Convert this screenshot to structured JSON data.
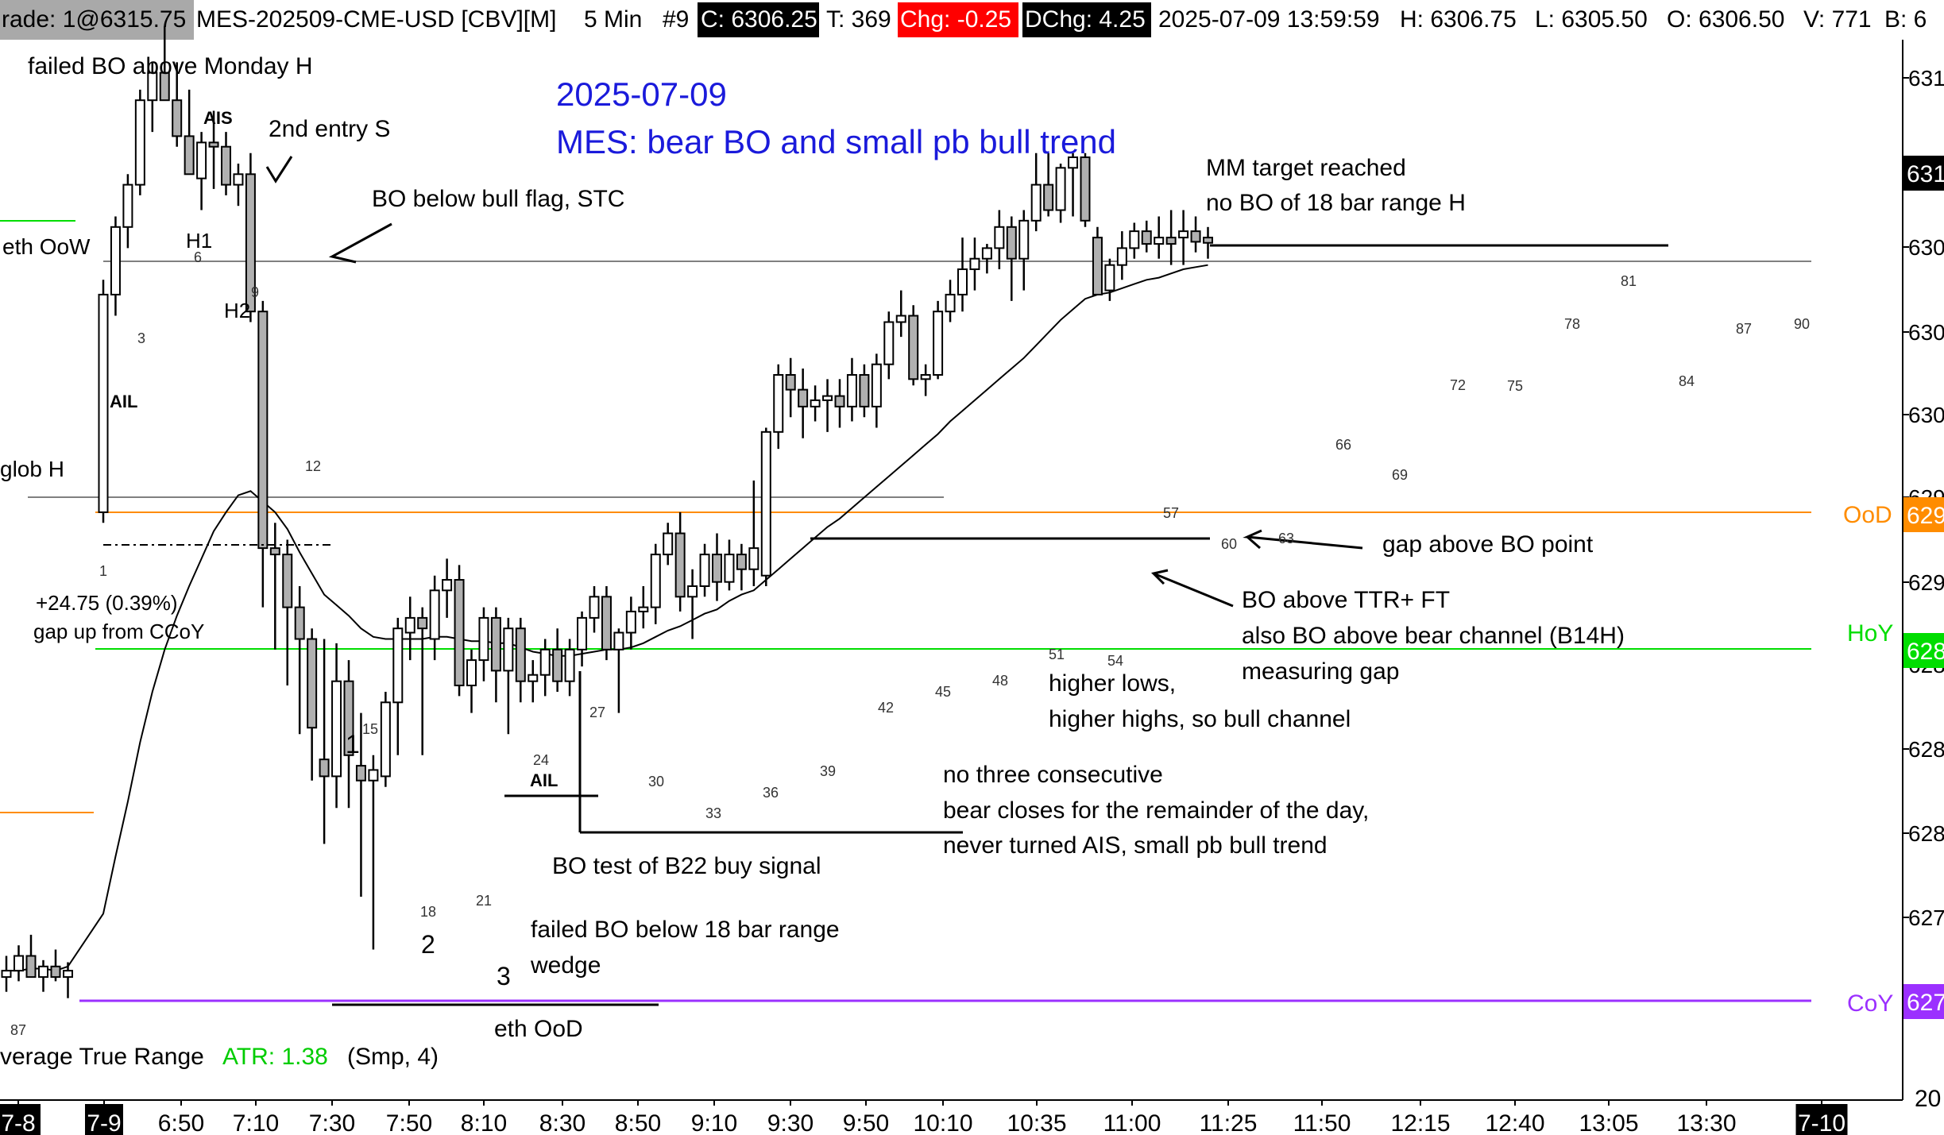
{
  "header": {
    "trade": "rade: 1@6315.75",
    "symbol": "MES-202509-CME-USD [CBV][M]",
    "interval": "5 Min",
    "bar_no": "#9",
    "close": "C: 6306.25",
    "ticks": "T: 369",
    "chg": "Chg: -0.25",
    "dchg": "DChg: 4.25",
    "datetime": "2025-07-09 13:59:59",
    "high": "H: 6306.75",
    "low": "L: 6305.50",
    "open": "O: 6306.50",
    "volume": "V: 771",
    "b_label": "B: 6"
  },
  "title": {
    "date": "2025-07-09",
    "subtitle": "MES: bear BO and small pb bull trend"
  },
  "colors": {
    "title": "#1a1adb",
    "ood": "#ff8c00",
    "hoy": "#00dd00",
    "coy": "#9b30ff",
    "chg_bg": "#ff0000",
    "axis_tag_bg": "#000000",
    "bear_fill": "#b0b0b0",
    "bull_fill": "#ffffff"
  },
  "chart_data": {
    "type": "candlestick",
    "title": "2025-07-09",
    "subtitle": "MES: bear BO and small pb bull trend",
    "ylim": [
      6267.0,
      6318.0
    ],
    "y_ticks": [
      "631",
      "631",
      "630",
      "630",
      "630",
      "629",
      "629",
      "628",
      "628",
      "628",
      "627",
      "627"
    ],
    "y_axis_tags": [
      "631",
      "629",
      "628",
      "627",
      "20"
    ],
    "x_tick_labels": [
      "7-8",
      "7-9",
      "6:50",
      "7:10",
      "7:30",
      "7:50",
      "8:10",
      "8:30",
      "8:50",
      "9:10",
      "9:30",
      "9:50",
      "10:10",
      "10:35",
      "11:00",
      "11:25",
      "11:50",
      "12:15",
      "12:40",
      "13:05",
      "13:30",
      "7-10"
    ],
    "bars": [
      {
        "o": 6271.5,
        "h": 6272.5,
        "l": 6270.8,
        "c": 6271.8
      },
      {
        "o": 6271.8,
        "h": 6273.0,
        "l": 6271.3,
        "c": 6272.5
      },
      {
        "o": 6272.5,
        "h": 6273.5,
        "l": 6271.8,
        "c": 6271.5
      },
      {
        "o": 6271.5,
        "h": 6272.3,
        "l": 6270.8,
        "c": 6272.0
      },
      {
        "o": 6272.0,
        "h": 6272.8,
        "l": 6271.3,
        "c": 6271.5
      },
      {
        "o": 6271.5,
        "h": 6272.2,
        "l": 6270.5,
        "c": 6271.8
      },
      {
        "o": 6293.5,
        "h": 6304.5,
        "l": 6293.0,
        "c": 6303.8
      },
      {
        "o": 6303.8,
        "h": 6307.5,
        "l": 6302.8,
        "c": 6307.0
      },
      {
        "o": 6307.0,
        "h": 6309.5,
        "l": 6306.0,
        "c": 6309.0
      },
      {
        "o": 6309.0,
        "h": 6313.5,
        "l": 6308.5,
        "c": 6313.0
      },
      {
        "o": 6313.0,
        "h": 6314.8,
        "l": 6311.5,
        "c": 6314.3
      },
      {
        "o": 6314.3,
        "h": 6316.5,
        "l": 6313.0,
        "c": 6313.0
      },
      {
        "o": 6313.0,
        "h": 6314.8,
        "l": 6310.8,
        "c": 6311.3
      },
      {
        "o": 6311.3,
        "h": 6313.5,
        "l": 6309.5,
        "c": 6309.5
      },
      {
        "o": 6309.3,
        "h": 6311.5,
        "l": 6307.8,
        "c": 6311.0
      },
      {
        "o": 6311.0,
        "h": 6312.5,
        "l": 6308.8,
        "c": 6310.8
      },
      {
        "o": 6310.8,
        "h": 6311.5,
        "l": 6308.5,
        "c": 6309.0
      },
      {
        "o": 6309.0,
        "h": 6310.0,
        "l": 6308.0,
        "c": 6309.5
      },
      {
        "o": 6309.5,
        "h": 6310.5,
        "l": 6302.5,
        "c": 6303.0
      },
      {
        "o": 6303.0,
        "h": 6303.5,
        "l": 6289.0,
        "c": 6291.8
      },
      {
        "o": 6291.8,
        "h": 6293.0,
        "l": 6287.0,
        "c": 6291.5
      },
      {
        "o": 6291.5,
        "h": 6292.2,
        "l": 6285.3,
        "c": 6289.0
      },
      {
        "o": 6289.0,
        "h": 6290.0,
        "l": 6283.0,
        "c": 6287.5
      },
      {
        "o": 6287.5,
        "h": 6288.0,
        "l": 6280.8,
        "c": 6283.3
      },
      {
        "o": 6281.8,
        "h": 6287.5,
        "l": 6277.8,
        "c": 6281.0
      },
      {
        "o": 6281.0,
        "h": 6287.3,
        "l": 6279.5,
        "c": 6285.5
      },
      {
        "o": 6285.5,
        "h": 6286.5,
        "l": 6279.5,
        "c": 6282.0
      },
      {
        "o": 6281.5,
        "h": 6284.0,
        "l": 6275.3,
        "c": 6280.8
      },
      {
        "o": 6280.8,
        "h": 6282.0,
        "l": 6272.8,
        "c": 6281.3
      },
      {
        "o": 6281.0,
        "h": 6285.0,
        "l": 6280.5,
        "c": 6284.5
      },
      {
        "o": 6284.5,
        "h": 6288.5,
        "l": 6282.0,
        "c": 6288.0
      },
      {
        "o": 6287.8,
        "h": 6289.5,
        "l": 6286.5,
        "c": 6288.5
      },
      {
        "o": 6288.5,
        "h": 6289.0,
        "l": 6282.0,
        "c": 6288.0
      },
      {
        "o": 6287.5,
        "h": 6290.5,
        "l": 6286.5,
        "c": 6289.8
      },
      {
        "o": 6289.8,
        "h": 6291.3,
        "l": 6288.5,
        "c": 6290.3
      },
      {
        "o": 6290.3,
        "h": 6291.0,
        "l": 6284.8,
        "c": 6285.3
      },
      {
        "o": 6285.3,
        "h": 6287.0,
        "l": 6284.0,
        "c": 6286.5
      },
      {
        "o": 6286.5,
        "h": 6289.0,
        "l": 6285.5,
        "c": 6288.5
      },
      {
        "o": 6288.5,
        "h": 6289.0,
        "l": 6284.5,
        "c": 6286.0
      },
      {
        "o": 6286.0,
        "h": 6288.5,
        "l": 6283.0,
        "c": 6288.0
      },
      {
        "o": 6288.0,
        "h": 6288.5,
        "l": 6284.5,
        "c": 6285.5
      },
      {
        "o": 6285.5,
        "h": 6286.5,
        "l": 6284.5,
        "c": 6285.8
      },
      {
        "o": 6285.8,
        "h": 6287.5,
        "l": 6284.8,
        "c": 6287.0
      },
      {
        "o": 6287.0,
        "h": 6288.0,
        "l": 6285.0,
        "c": 6285.5
      },
      {
        "o": 6285.5,
        "h": 6287.5,
        "l": 6284.8,
        "c": 6287.0
      },
      {
        "o": 6287.0,
        "h": 6288.8,
        "l": 6286.2,
        "c": 6288.5
      },
      {
        "o": 6288.5,
        "h": 6290.0,
        "l": 6287.8,
        "c": 6289.5
      },
      {
        "o": 6289.5,
        "h": 6290.0,
        "l": 6286.5,
        "c": 6287.0
      },
      {
        "o": 6287.0,
        "h": 6288.0,
        "l": 6284.0,
        "c": 6287.8
      },
      {
        "o": 6287.8,
        "h": 6289.5,
        "l": 6287.0,
        "c": 6288.8
      },
      {
        "o": 6288.8,
        "h": 6290.0,
        "l": 6288.0,
        "c": 6289.0
      },
      {
        "o": 6289.0,
        "h": 6292.0,
        "l": 6288.2,
        "c": 6291.5
      },
      {
        "o": 6291.5,
        "h": 6293.0,
        "l": 6291.0,
        "c": 6292.5
      },
      {
        "o": 6292.5,
        "h": 6293.5,
        "l": 6288.8,
        "c": 6289.5
      },
      {
        "o": 6289.5,
        "h": 6290.8,
        "l": 6287.5,
        "c": 6290.0
      },
      {
        "o": 6290.0,
        "h": 6292.0,
        "l": 6289.5,
        "c": 6291.5
      },
      {
        "o": 6291.5,
        "h": 6292.5,
        "l": 6289.3,
        "c": 6290.2
      },
      {
        "o": 6290.2,
        "h": 6292.2,
        "l": 6289.8,
        "c": 6291.5
      },
      {
        "o": 6291.5,
        "h": 6292.0,
        "l": 6289.8,
        "c": 6290.8
      },
      {
        "o": 6290.8,
        "h": 6295.0,
        "l": 6290.0,
        "c": 6291.8
      },
      {
        "o": 6290.5,
        "h": 6297.5,
        "l": 6290.0,
        "c": 6297.3
      },
      {
        "o": 6297.3,
        "h": 6300.5,
        "l": 6296.5,
        "c": 6300.0
      },
      {
        "o": 6300.0,
        "h": 6300.8,
        "l": 6298.0,
        "c": 6299.3
      },
      {
        "o": 6299.3,
        "h": 6300.3,
        "l": 6297.0,
        "c": 6298.5
      },
      {
        "o": 6298.5,
        "h": 6299.5,
        "l": 6297.8,
        "c": 6298.8
      },
      {
        "o": 6298.8,
        "h": 6299.8,
        "l": 6297.3,
        "c": 6299.0
      },
      {
        "o": 6299.0,
        "h": 6299.8,
        "l": 6297.5,
        "c": 6298.5
      },
      {
        "o": 6298.5,
        "h": 6300.8,
        "l": 6297.8,
        "c": 6300.0
      },
      {
        "o": 6300.0,
        "h": 6300.5,
        "l": 6298.0,
        "c": 6298.5
      },
      {
        "o": 6298.5,
        "h": 6301.0,
        "l": 6297.5,
        "c": 6300.5
      },
      {
        "o": 6300.5,
        "h": 6303.0,
        "l": 6299.8,
        "c": 6302.5
      },
      {
        "o": 6302.5,
        "h": 6304.0,
        "l": 6301.8,
        "c": 6302.8
      },
      {
        "o": 6302.8,
        "h": 6303.3,
        "l": 6299.5,
        "c": 6299.8
      },
      {
        "o": 6299.8,
        "h": 6300.5,
        "l": 6299.0,
        "c": 6300.0
      },
      {
        "o": 6300.0,
        "h": 6303.5,
        "l": 6299.8,
        "c": 6303.0
      },
      {
        "o": 6303.0,
        "h": 6304.5,
        "l": 6302.5,
        "c": 6303.8
      },
      {
        "o": 6303.8,
        "h": 6306.5,
        "l": 6303.0,
        "c": 6305.0
      },
      {
        "o": 6305.0,
        "h": 6306.5,
        "l": 6304.0,
        "c": 6305.5
      },
      {
        "o": 6305.5,
        "h": 6306.2,
        "l": 6304.8,
        "c": 6306.0
      },
      {
        "o": 6306.0,
        "h": 6307.8,
        "l": 6305.0,
        "c": 6307.0
      },
      {
        "o": 6307.0,
        "h": 6307.5,
        "l": 6303.5,
        "c": 6305.5
      },
      {
        "o": 6305.5,
        "h": 6307.8,
        "l": 6304.0,
        "c": 6307.3
      },
      {
        "o": 6307.3,
        "h": 6310.5,
        "l": 6306.8,
        "c": 6309.0
      },
      {
        "o": 6309.0,
        "h": 6310.5,
        "l": 6307.5,
        "c": 6307.8
      },
      {
        "o": 6307.8,
        "h": 6310.0,
        "l": 6307.2,
        "c": 6309.8
      },
      {
        "o": 6309.8,
        "h": 6310.5,
        "l": 6307.5,
        "c": 6310.3
      },
      {
        "o": 6310.3,
        "h": 6310.5,
        "l": 6307.0,
        "c": 6307.3
      },
      {
        "o": 6306.5,
        "h": 6307.0,
        "l": 6304.3,
        "c": 6303.8
      },
      {
        "o": 6304.0,
        "h": 6305.5,
        "l": 6303.5,
        "c": 6305.2
      },
      {
        "o": 6305.2,
        "h": 6306.8,
        "l": 6304.5,
        "c": 6306.0
      },
      {
        "o": 6306.0,
        "h": 6307.2,
        "l": 6305.5,
        "c": 6306.8
      },
      {
        "o": 6306.8,
        "h": 6307.3,
        "l": 6305.8,
        "c": 6306.2
      },
      {
        "o": 6306.2,
        "h": 6307.5,
        "l": 6305.5,
        "c": 6306.5
      },
      {
        "o": 6306.5,
        "h": 6307.8,
        "l": 6305.2,
        "c": 6306.2
      },
      {
        "o": 6306.5,
        "h": 6307.8,
        "l": 6305.2,
        "c": 6306.8
      },
      {
        "o": 6306.8,
        "h": 6307.5,
        "l": 6305.8,
        "c": 6306.3
      },
      {
        "o": 6306.5,
        "h": 6307.0,
        "l": 6305.5,
        "c": 6306.25
      }
    ],
    "ema": [
      6271.8,
      6271.8,
      6271.9,
      6271.9,
      6271.8,
      6272.0,
      6274.5,
      6277.2,
      6279.8,
      6282.6,
      6285.0,
      6287.0,
      6288.6,
      6290.0,
      6291.3,
      6292.6,
      6293.5,
      6294.3,
      6294.5,
      6294.0,
      6293.5,
      6292.7,
      6291.6,
      6290.6,
      6289.6,
      6289.1,
      6288.6,
      6288.0,
      6287.6,
      6287.5,
      6287.5,
      6287.5,
      6287.5,
      6287.6,
      6287.6,
      6287.5,
      6287.4,
      6287.4,
      6287.3,
      6287.3,
      6287.1,
      6286.9,
      6286.8,
      6286.7,
      6286.7,
      6286.8,
      6286.9,
      6287.0,
      6287.0,
      6287.1,
      6287.3,
      6287.6,
      6287.9,
      6288.1,
      6288.4,
      6288.7,
      6288.9,
      6289.3,
      6289.6,
      6289.8,
      6290.3,
      6290.8,
      6291.3,
      6291.8,
      6292.3,
      6292.8,
      6293.2,
      6293.7,
      6294.2,
      6294.7,
      6295.2,
      6295.7,
      6296.2,
      6296.7,
      6297.2,
      6297.8,
      6298.3,
      6298.8,
      6299.3,
      6299.8,
      6300.3,
      6300.8,
      6301.4,
      6302.0,
      6302.6,
      6303.1,
      6303.6,
      6303.8,
      6303.9,
      6304.1,
      6304.3,
      6304.5,
      6304.6,
      6304.8,
      6305.0,
      6305.1,
      6305.2
    ],
    "levels": [
      {
        "name": "eth OoW",
        "price": 6309.2
      },
      {
        "name": "glob H",
        "price": 6295.3
      },
      {
        "name": "OoD",
        "price": 6294.3
      },
      {
        "name": "HoY",
        "price": 6289.0
      },
      {
        "name": "CoY",
        "price": 6271.5
      }
    ],
    "bar_numbers": [
      "87",
      "1",
      "3",
      "6",
      "9",
      "12",
      "15",
      "18",
      "21",
      "24",
      "27",
      "30",
      "33",
      "36",
      "39",
      "42",
      "45",
      "48",
      "51",
      "54",
      "57",
      "60",
      "63",
      "66",
      "69",
      "72",
      "75",
      "78",
      "81",
      "84",
      "87",
      "90"
    ],
    "swing_counts": [
      "1",
      "2",
      "3"
    ],
    "bar_signals": [
      "AIS",
      "AIL",
      "AIL",
      "H1",
      "H2"
    ],
    "annotations": [
      "failed BO above Monday H",
      "2nd entry S",
      "BO below bull flag, STC",
      "MM target reached",
      "no BO of 18 bar range H",
      "+24.75 (0.39%)",
      "gap up from CCoY",
      "gap above BO point",
      "BO above TTR+ FT",
      "also BO above bear channel (B14H)",
      "measuring gap",
      "higher lows,",
      "higher highs, so bull channel",
      "no three consecutive",
      "bear closes for the remainder of the day,",
      "never turned AIS, small pb bull trend",
      "BO test of  B22 buy signal",
      "failed BO below 18 bar range",
      "wedge",
      "eth OoD"
    ],
    "indicator": {
      "name": "verage True Range",
      "value": "ATR: 1.38",
      "params": "(Smp, 4)"
    }
  }
}
